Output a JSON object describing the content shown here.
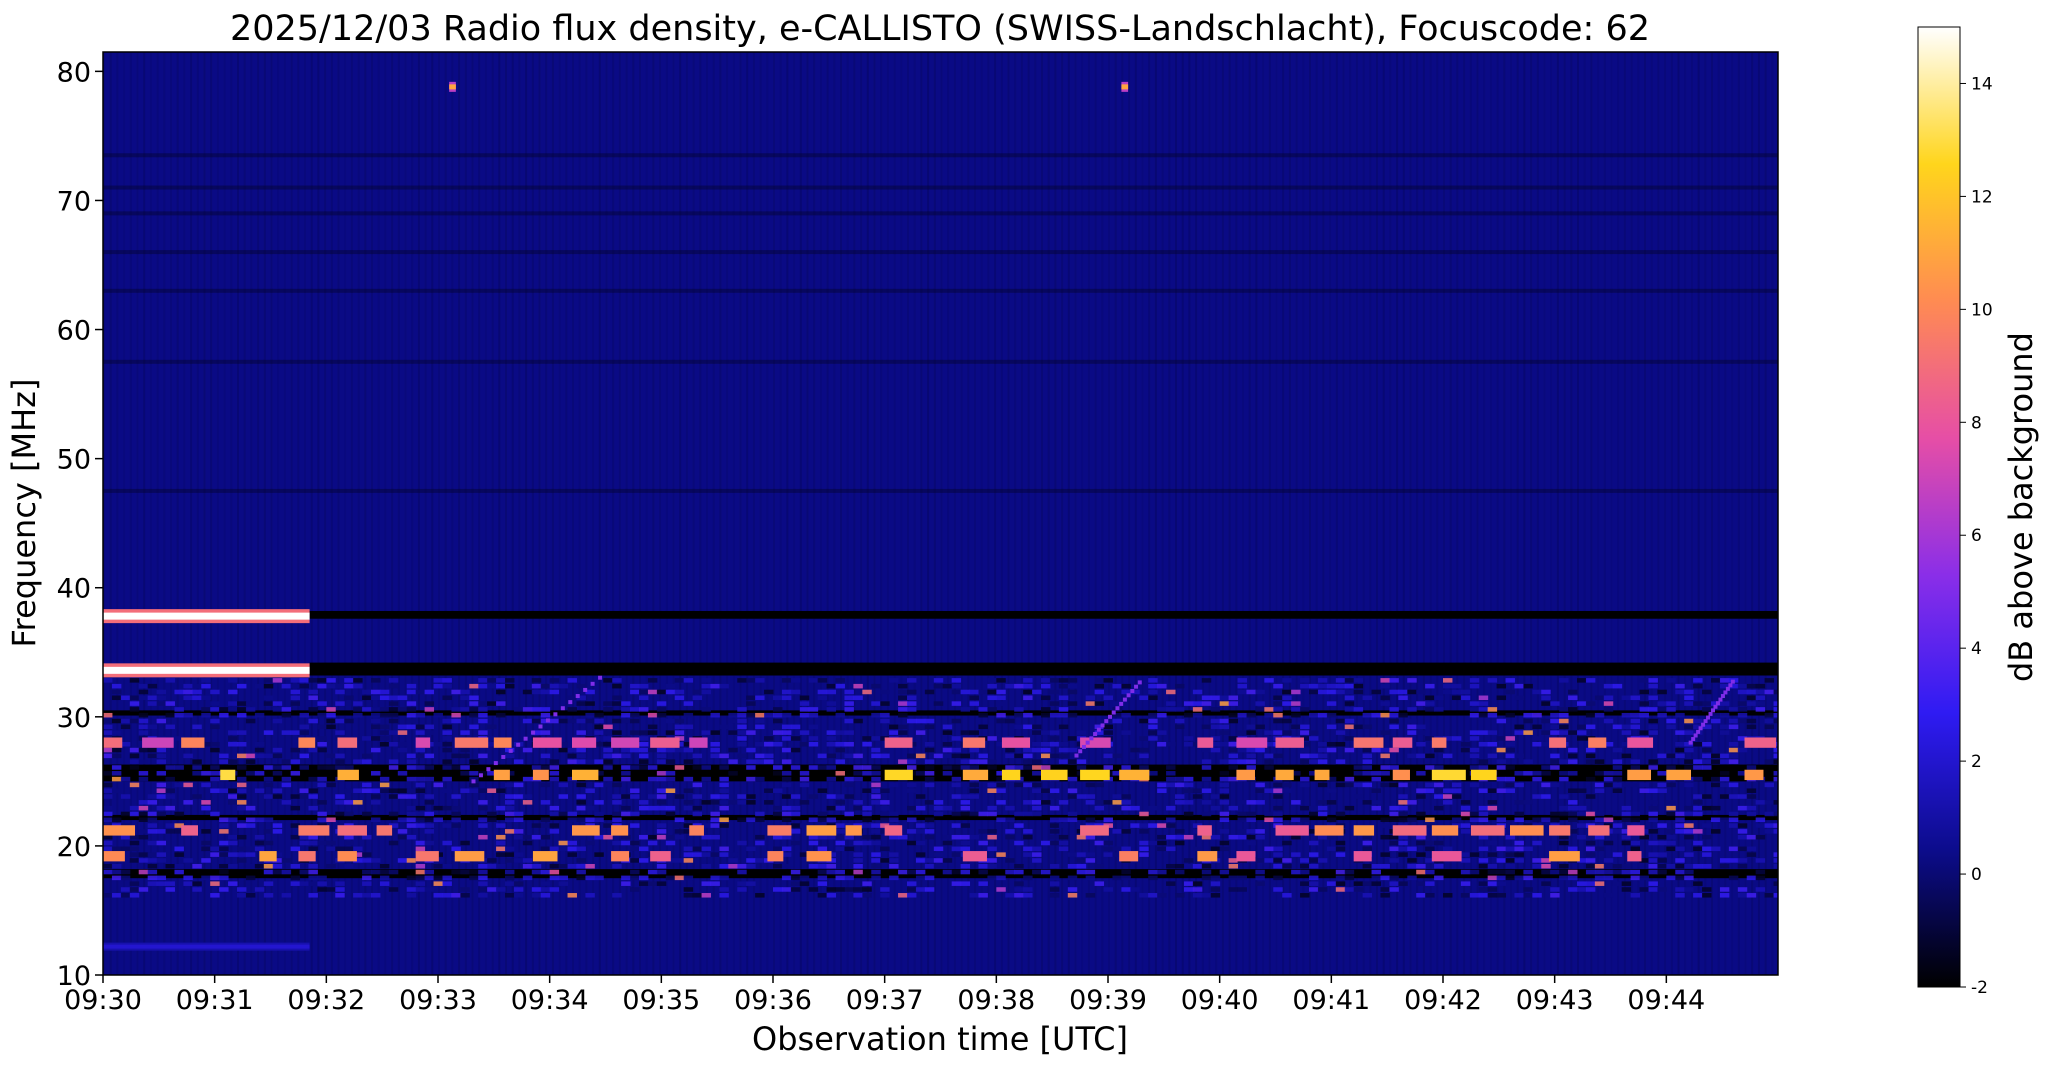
{
  "chart_data": {
    "type": "heatmap",
    "title": "2025/12/03  Radio flux density, e-CALLISTO (SWISS-Landschlacht), Focuscode: 62",
    "xlabel": "Observation time [UTC]",
    "ylabel": "Frequency [MHz]",
    "x_ticks": [
      "09:30",
      "09:31",
      "09:32",
      "09:33",
      "09:34",
      "09:35",
      "09:36",
      "09:37",
      "09:38",
      "09:39",
      "09:40",
      "09:41",
      "09:42",
      "09:43",
      "09:44"
    ],
    "x_range_minutes": [
      0,
      15
    ],
    "y_ticks": [
      10,
      20,
      30,
      40,
      50,
      60,
      70,
      80
    ],
    "ylim": [
      10,
      81.5
    ],
    "colorbar": {
      "label": "dB above background",
      "ticks": [
        -2,
        0,
        2,
        4,
        6,
        8,
        10,
        12,
        14
      ],
      "range": [
        -2,
        15
      ],
      "colormap": "gnuplot2",
      "colors": [
        "#000000",
        "#0c0c8c",
        "#2f1bf3",
        "#8a2ee8",
        "#e64ea6",
        "#ff8b52",
        "#ffd51c",
        "#ffffff"
      ]
    },
    "features": [
      {
        "label": "strong carrier",
        "freq_mhz": 37.8,
        "t_start": 0,
        "t_end": 1.85,
        "db": 15
      },
      {
        "label": "strong carrier",
        "freq_mhz": 33.6,
        "t_start": 0,
        "t_end": 1.85,
        "db": 15
      },
      {
        "label": "weak carrier",
        "freq_mhz": 12.2,
        "t_start": 0,
        "t_end": 1.85,
        "db": 2
      },
      {
        "label": "spike",
        "freq_mhz": 78.8,
        "t_start": 3.1,
        "t_end": 3.16,
        "db": 11
      },
      {
        "label": "spike",
        "freq_mhz": 78.8,
        "t_start": 9.12,
        "t_end": 9.18,
        "db": 11
      },
      {
        "label": "drift",
        "freq_start_mhz": 25,
        "freq_end_mhz": 33.5,
        "t_start": 3.3,
        "t_end": 4.5,
        "db": 5
      },
      {
        "label": "drift",
        "freq_start_mhz": 27,
        "freq_end_mhz": 33,
        "t_start": 8.7,
        "t_end": 9.3,
        "db": 5
      },
      {
        "label": "drift",
        "freq_start_mhz": 28,
        "freq_end_mhz": 33,
        "t_start": 14.2,
        "t_end": 14.6,
        "db": 5
      }
    ]
  }
}
